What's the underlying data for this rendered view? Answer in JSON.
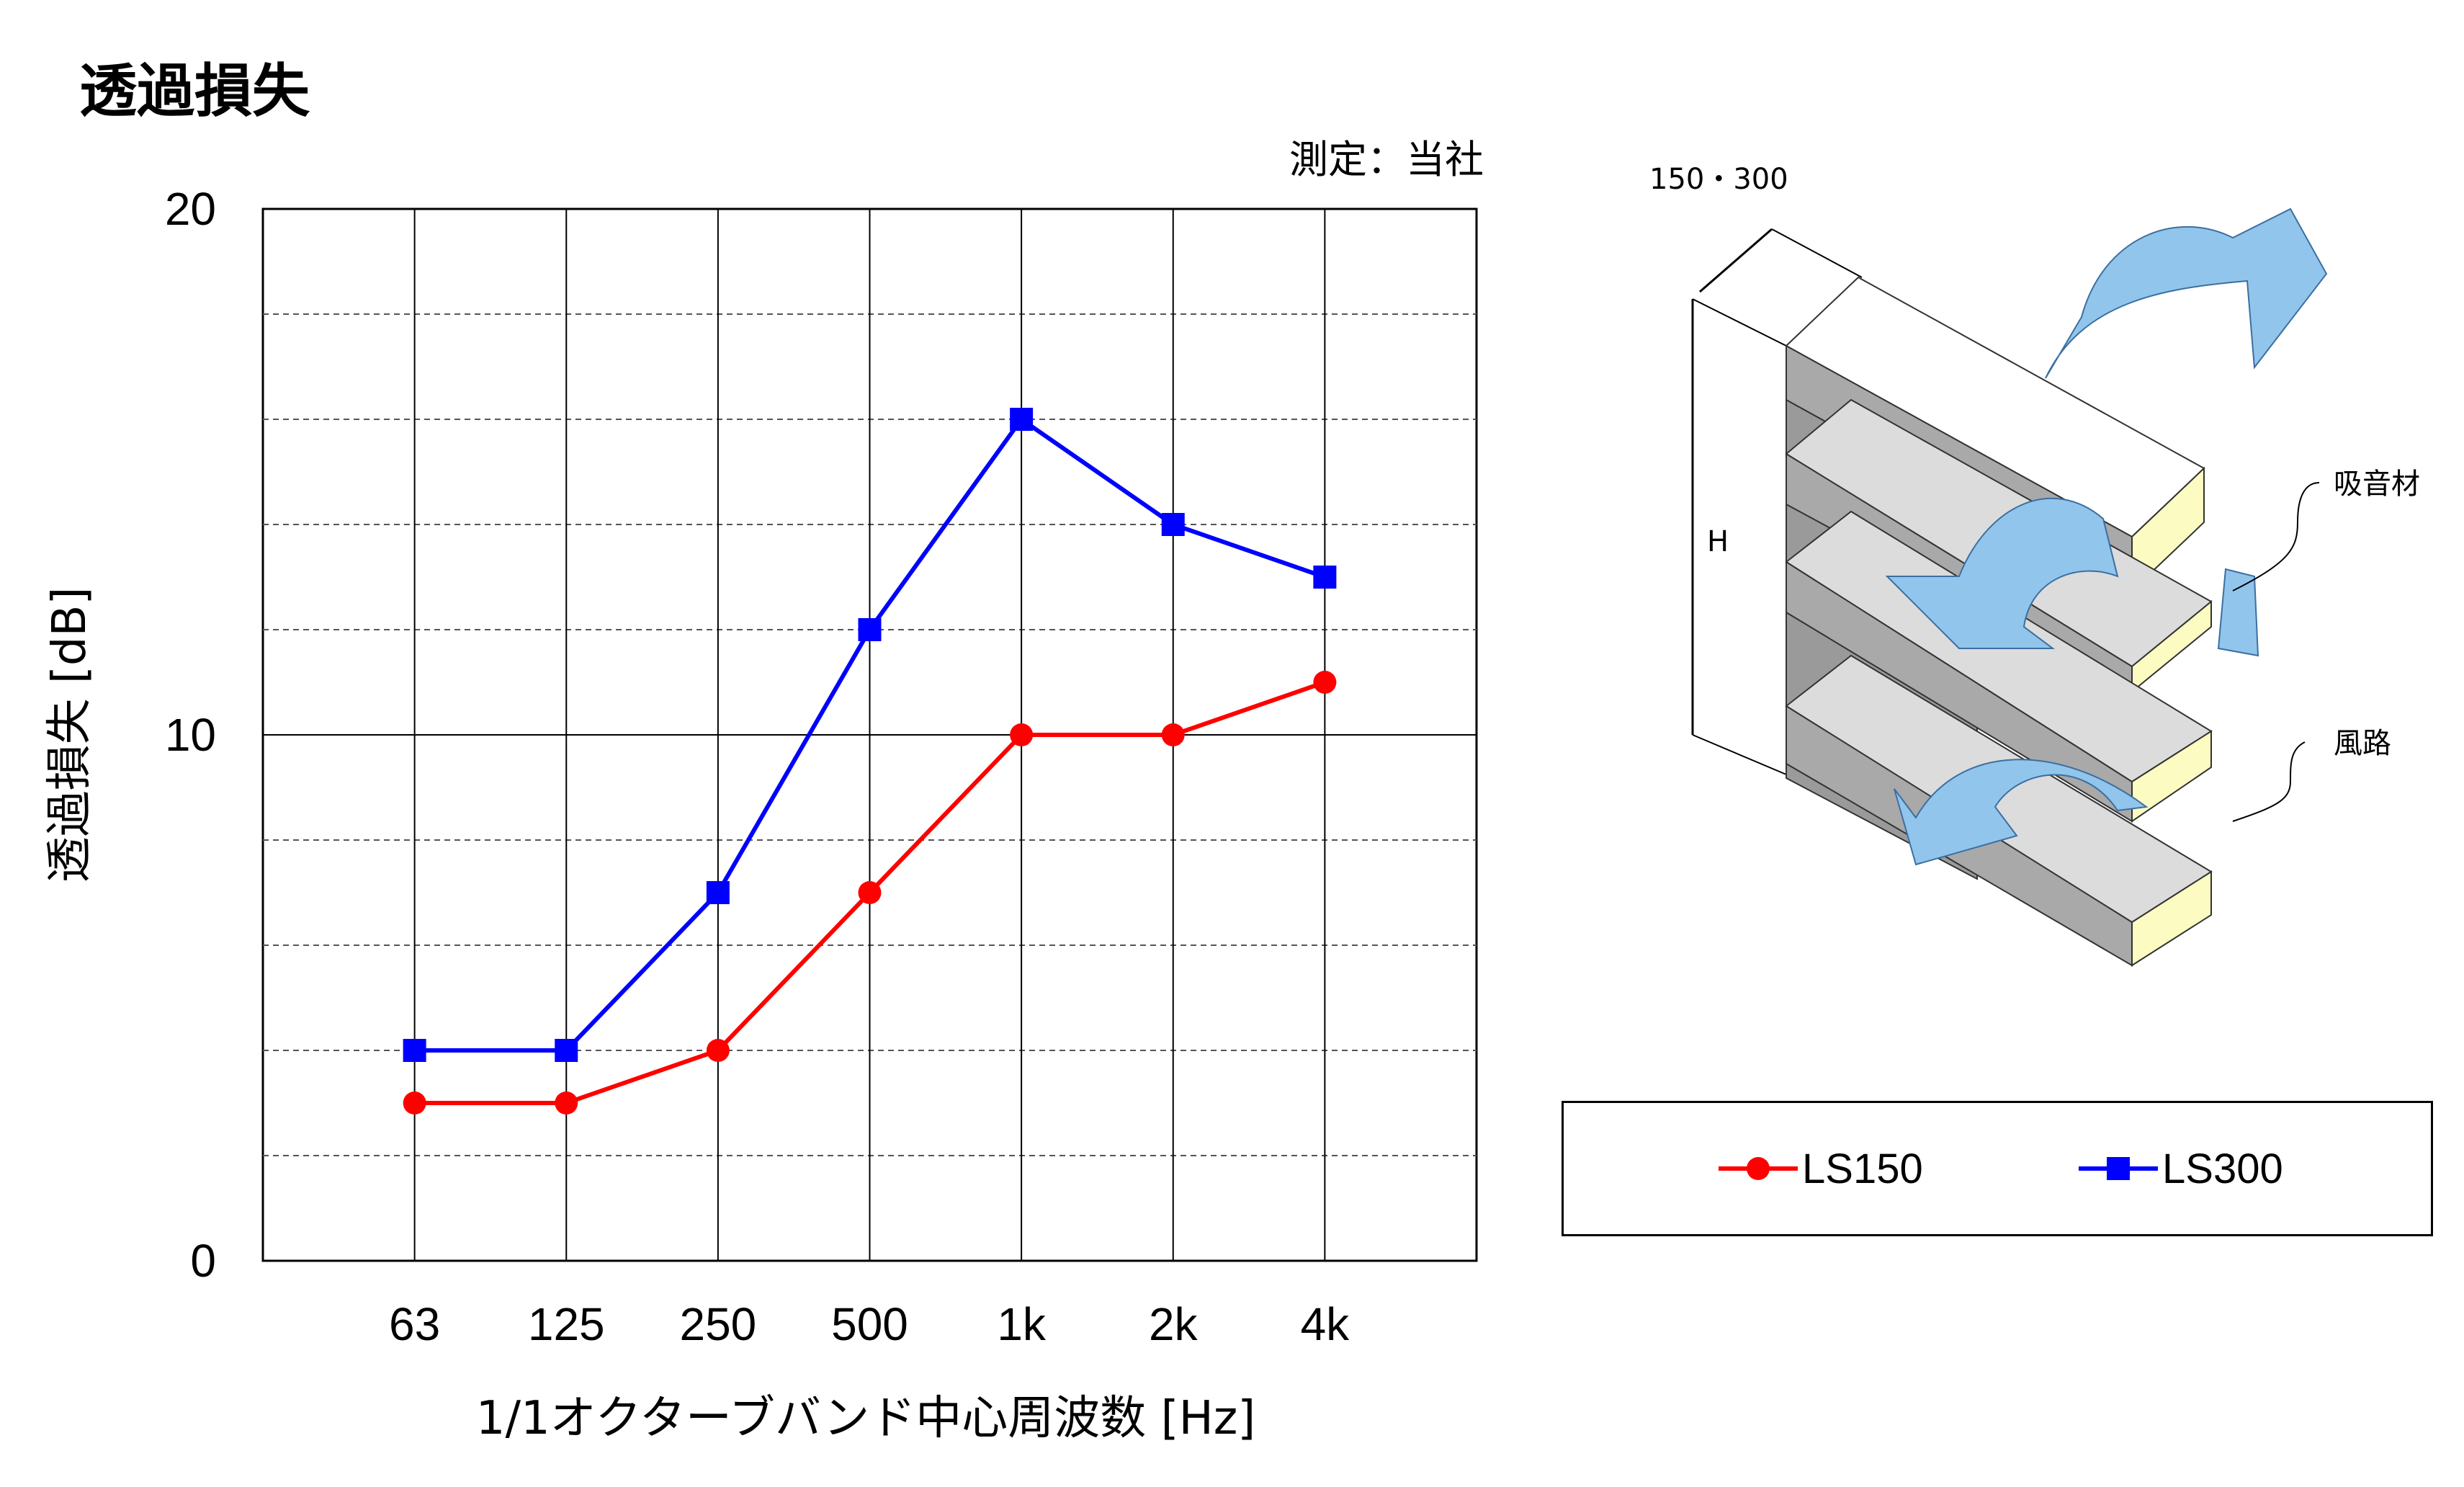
{
  "page": {
    "title": "透過損失",
    "measurement_note": "測定：当社"
  },
  "chart_data": {
    "type": "line",
    "title": "",
    "categories": [
      "63",
      "125",
      "250",
      "500",
      "1k",
      "2k",
      "4k"
    ],
    "xlabel": "1/1オクターブバンド中心周波数 [Hz]",
    "ylabel": "透過損失 [dB]",
    "ylim": [
      0,
      20
    ],
    "yticks": [
      "0",
      "10",
      "20"
    ],
    "minor_grid_step": 2,
    "grid": true,
    "legend_position": "right-below-diagram",
    "series": [
      {
        "name": "LS150",
        "marker": "circle",
        "color": "#ff0000",
        "values": [
          3,
          3,
          4,
          7,
          10,
          10,
          11
        ]
      },
      {
        "name": "LS300",
        "marker": "square",
        "color": "#0000ff",
        "values": [
          4,
          4,
          7,
          12,
          16,
          14,
          13
        ]
      }
    ]
  },
  "diagram": {
    "labels": {
      "thickness": "150・300",
      "height": "H",
      "absorber": "吸音材",
      "airway": "風路"
    },
    "colors": {
      "arrow": "#92c5ec",
      "absorber": "#fbfbc2",
      "blade_dark": "#a9a9a9",
      "blade_light": "#dcdcdc"
    }
  }
}
